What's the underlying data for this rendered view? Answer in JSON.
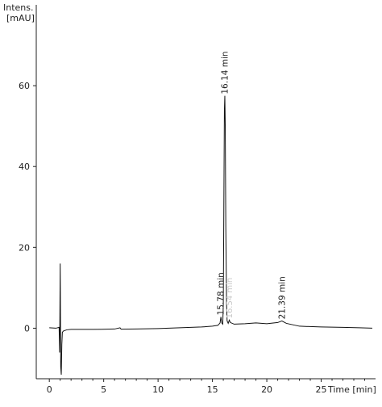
{
  "chart_data": {
    "type": "line",
    "ylabel": [
      "Intens.",
      "[mAU]"
    ],
    "xlabel": "Time [min]",
    "xlim": [
      -1.2,
      30.0
    ],
    "ylim": [
      -12.5,
      80
    ],
    "xticks": [
      0,
      5,
      10,
      15,
      20,
      25
    ],
    "yticks": [
      0,
      20,
      40,
      60
    ],
    "series": [
      {
        "values": [
          [
            0.0,
            0.1
          ],
          [
            0.6,
            0.0
          ],
          [
            0.9,
            0.2
          ],
          [
            0.95,
            -6.0
          ],
          [
            1.0,
            16.0
          ],
          [
            1.05,
            -9.5
          ],
          [
            1.1,
            -11.5
          ],
          [
            1.15,
            -4.0
          ],
          [
            1.2,
            -1.0
          ],
          [
            1.3,
            -0.7
          ],
          [
            1.6,
            -0.4
          ],
          [
            2.0,
            -0.3
          ],
          [
            4.0,
            -0.3
          ],
          [
            6.0,
            -0.2
          ],
          [
            6.5,
            0.1
          ],
          [
            6.6,
            -0.25
          ],
          [
            8.0,
            -0.2
          ],
          [
            10.0,
            -0.1
          ],
          [
            12.0,
            0.1
          ],
          [
            14.0,
            0.3
          ],
          [
            15.0,
            0.5
          ],
          [
            15.5,
            0.7
          ],
          [
            15.7,
            1.3
          ],
          [
            15.78,
            2.8
          ],
          [
            15.86,
            1.3
          ],
          [
            15.95,
            1.0
          ],
          [
            16.0,
            6.0
          ],
          [
            16.05,
            30.0
          ],
          [
            16.1,
            54.0
          ],
          [
            16.14,
            57.5
          ],
          [
            16.18,
            50.0
          ],
          [
            16.23,
            25.0
          ],
          [
            16.3,
            6.0
          ],
          [
            16.35,
            1.8
          ],
          [
            16.45,
            1.2
          ],
          [
            16.55,
            2.0
          ],
          [
            16.65,
            1.4
          ],
          [
            17.0,
            1.0
          ],
          [
            18.0,
            1.1
          ],
          [
            19.0,
            1.3
          ],
          [
            20.0,
            1.1
          ],
          [
            21.0,
            1.4
          ],
          [
            21.39,
            1.8
          ],
          [
            21.8,
            1.2
          ],
          [
            23.0,
            0.5
          ],
          [
            25.0,
            0.3
          ],
          [
            27.0,
            0.2
          ],
          [
            28.5,
            0.1
          ],
          [
            29.7,
            0.0
          ]
        ]
      }
    ],
    "peaks": [
      {
        "label": "16.14 min",
        "x": 16.14,
        "y": 57.5,
        "style": "normal"
      },
      {
        "label": "15.78 min",
        "x": 15.78,
        "y": 2.8,
        "style": "normal"
      },
      {
        "label": "21.39 min",
        "x": 21.39,
        "y": 1.8,
        "style": "normal"
      },
      {
        "label": "16.54 min",
        "x": 16.54,
        "y": 2.0,
        "style": "faint"
      }
    ],
    "grid": false,
    "legend": "none"
  }
}
